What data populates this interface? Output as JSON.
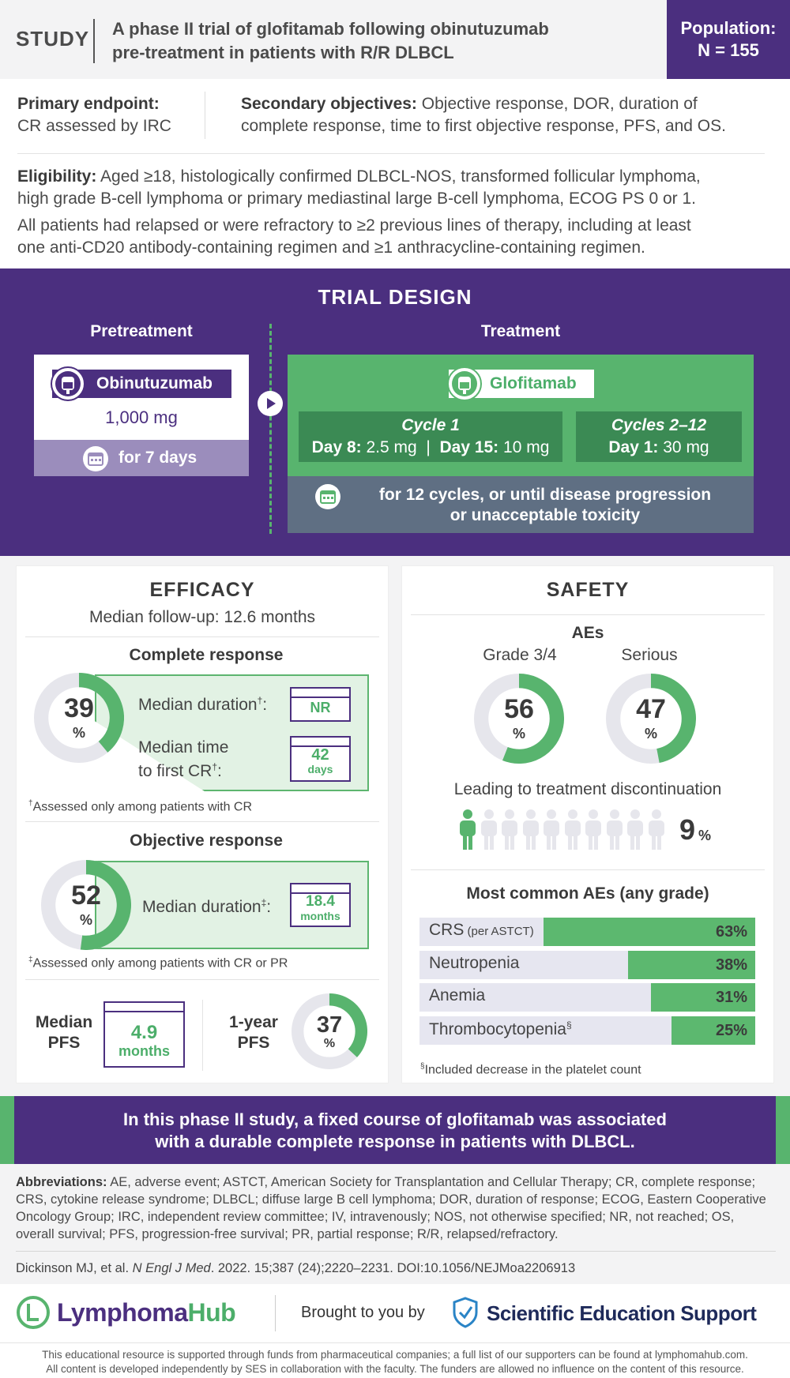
{
  "header": {
    "study_label": "STUDY",
    "title_line1": "A phase II trial of glofitamab following obinutuzumab",
    "title_line2": "pre-treatment in patients with R/R DLBCL",
    "population_label": "Population:",
    "population_value": "N = 155"
  },
  "endpoints": {
    "primary_label": "Primary endpoint:",
    "primary_value": "CR assessed by IRC",
    "secondary_label": "Secondary objectives:",
    "secondary_value_line1": "Objective response, DOR, duration of",
    "secondary_value_line2": "complete response, time to first objective response, PFS, and OS."
  },
  "eligibility": {
    "label": "Eligibility:",
    "line1": "Aged ≥18, histologically confirmed DLBCL-NOS, transformed follicular lymphoma,",
    "line2": "high grade B-cell lymphoma or primary mediastinal large B-cell lymphoma, ECOG PS 0 or 1.",
    "line3": "All patients had relapsed or were refractory to ≥2 previous lines of therapy, including at least",
    "line4": "one anti-CD20 antibody-containing regimen and ≥1 anthracycline-containing regimen."
  },
  "design": {
    "title": "TRIAL DESIGN",
    "pretreatment_label": "Pretreatment",
    "treatment_label": "Treatment",
    "pret_drug": "Obinutuzumab",
    "pret_dose": "1,000 mg",
    "pret_days": "for 7 days",
    "treat_drug": "Glofitamab",
    "cycle1_title": "Cycle 1",
    "cycle1_d8_label": "Day 8:",
    "cycle1_d8_value": "2.5 mg",
    "cycle1_d15_label": "Day 15:",
    "cycle1_d15_value": "10 mg",
    "cycles2_title": "Cycles 2–12",
    "cycles2_label": "Day 1:",
    "cycles2_value": "30 mg",
    "duration_line1": "for 12 cycles, or until disease progression",
    "duration_line2": "or unacceptable toxicity"
  },
  "efficacy": {
    "title": "EFFICACY",
    "followup": "Median follow-up: 12.6 months",
    "cr_title": "Complete response",
    "cr_value": "39",
    "cr_pct": "%",
    "cr_median_duration": "Median duration",
    "cr_median_duration_sup": "†",
    "cr_median_duration_value": "NR",
    "cr_time_line1": "Median time",
    "cr_time_line2": "to first CR",
    "cr_time_value": "42",
    "cr_time_unit": "days",
    "cr_footnote": "Assessed only among patients with CR",
    "cr_footnote_mark": "†",
    "or_title": "Objective response",
    "or_value": "52",
    "or_pct": "%",
    "or_median_duration": "Median duration",
    "or_median_duration_sup": "‡",
    "or_median_duration_value": "18.4",
    "or_median_duration_unit": "months",
    "or_footnote": "Assessed only among patients with CR or PR",
    "or_footnote_mark": "‡",
    "pfs_label_line1": "Median",
    "pfs_label_line2": "PFS",
    "pfs_value": "4.9",
    "pfs_unit": "months",
    "pfs1y_label_line1": "1-year",
    "pfs1y_label_line2": "PFS",
    "pfs1y_value": "37",
    "pfs1y_pct": "%"
  },
  "safety": {
    "title": "SAFETY",
    "aes_title": "AEs",
    "grade34_label": "Grade 3/4",
    "grade34_value": "56",
    "serious_label": "Serious",
    "serious_value": "47",
    "pct": "%",
    "discontinuation_label": "Leading to treatment discontinuation",
    "discontinuation_value": "9",
    "common_title": "Most common AEs (any grade)",
    "aes": [
      {
        "label": "CRS",
        "sub": "(per ASTCT)",
        "value": "63%",
        "fraction": 0.63
      },
      {
        "label": "Neutropenia",
        "sub": "",
        "value": "38%",
        "fraction": 0.38
      },
      {
        "label": "Anemia",
        "sub": "",
        "value": "31%",
        "fraction": 0.31
      },
      {
        "label": "Thrombocytopenia",
        "sub": "§",
        "value": "25%",
        "fraction": 0.25
      }
    ],
    "footnote_mark": "§",
    "footnote": "Included decrease in the platelet count"
  },
  "conclusion": {
    "line1": "In this phase II study, a fixed course of glofitamab was associated",
    "line2": "with a durable complete response in patients with DLBCL."
  },
  "abbreviations": {
    "label": "Abbreviations:",
    "text": "AE, adverse event; ASTCT, American Society for Transplantation and Cellular Therapy; CR, complete response; CRS, cytokine release syndrome; DLBCL; diffuse large B cell lymphoma; DOR, duration of response; ECOG, Eastern Cooperative Oncology Group; IRC, independent review committee; IV, intravenously; NOS, not otherwise specified; NR, not reached; OS, overall survival; PFS, progression-free survival; PR, partial response; R/R, relapsed/refractory."
  },
  "reference": {
    "authors": "Dickinson MJ, et al.",
    "journal": "N Engl J Med",
    "details": ". 2022. 15;387 (24);2220–2231. DOI:10.1056/NEJMoa2206913"
  },
  "footer": {
    "brand1": "Lymphoma",
    "brand2": "Hub",
    "brought": "Brought to you by",
    "ses": "Scientific Education Support",
    "disclaimer1": "This educational resource is supported through funds from pharmaceutical companies; a full list of our supporters can be found at lymphomahub.com.",
    "disclaimer2": "All content is developed independently by SES in collaboration with the faculty. The funders are allowed no influence on the content of this resource."
  },
  "colors": {
    "purple": "#4b2f7f",
    "green": "#58b46e",
    "grey": "#e6e6ec"
  }
}
